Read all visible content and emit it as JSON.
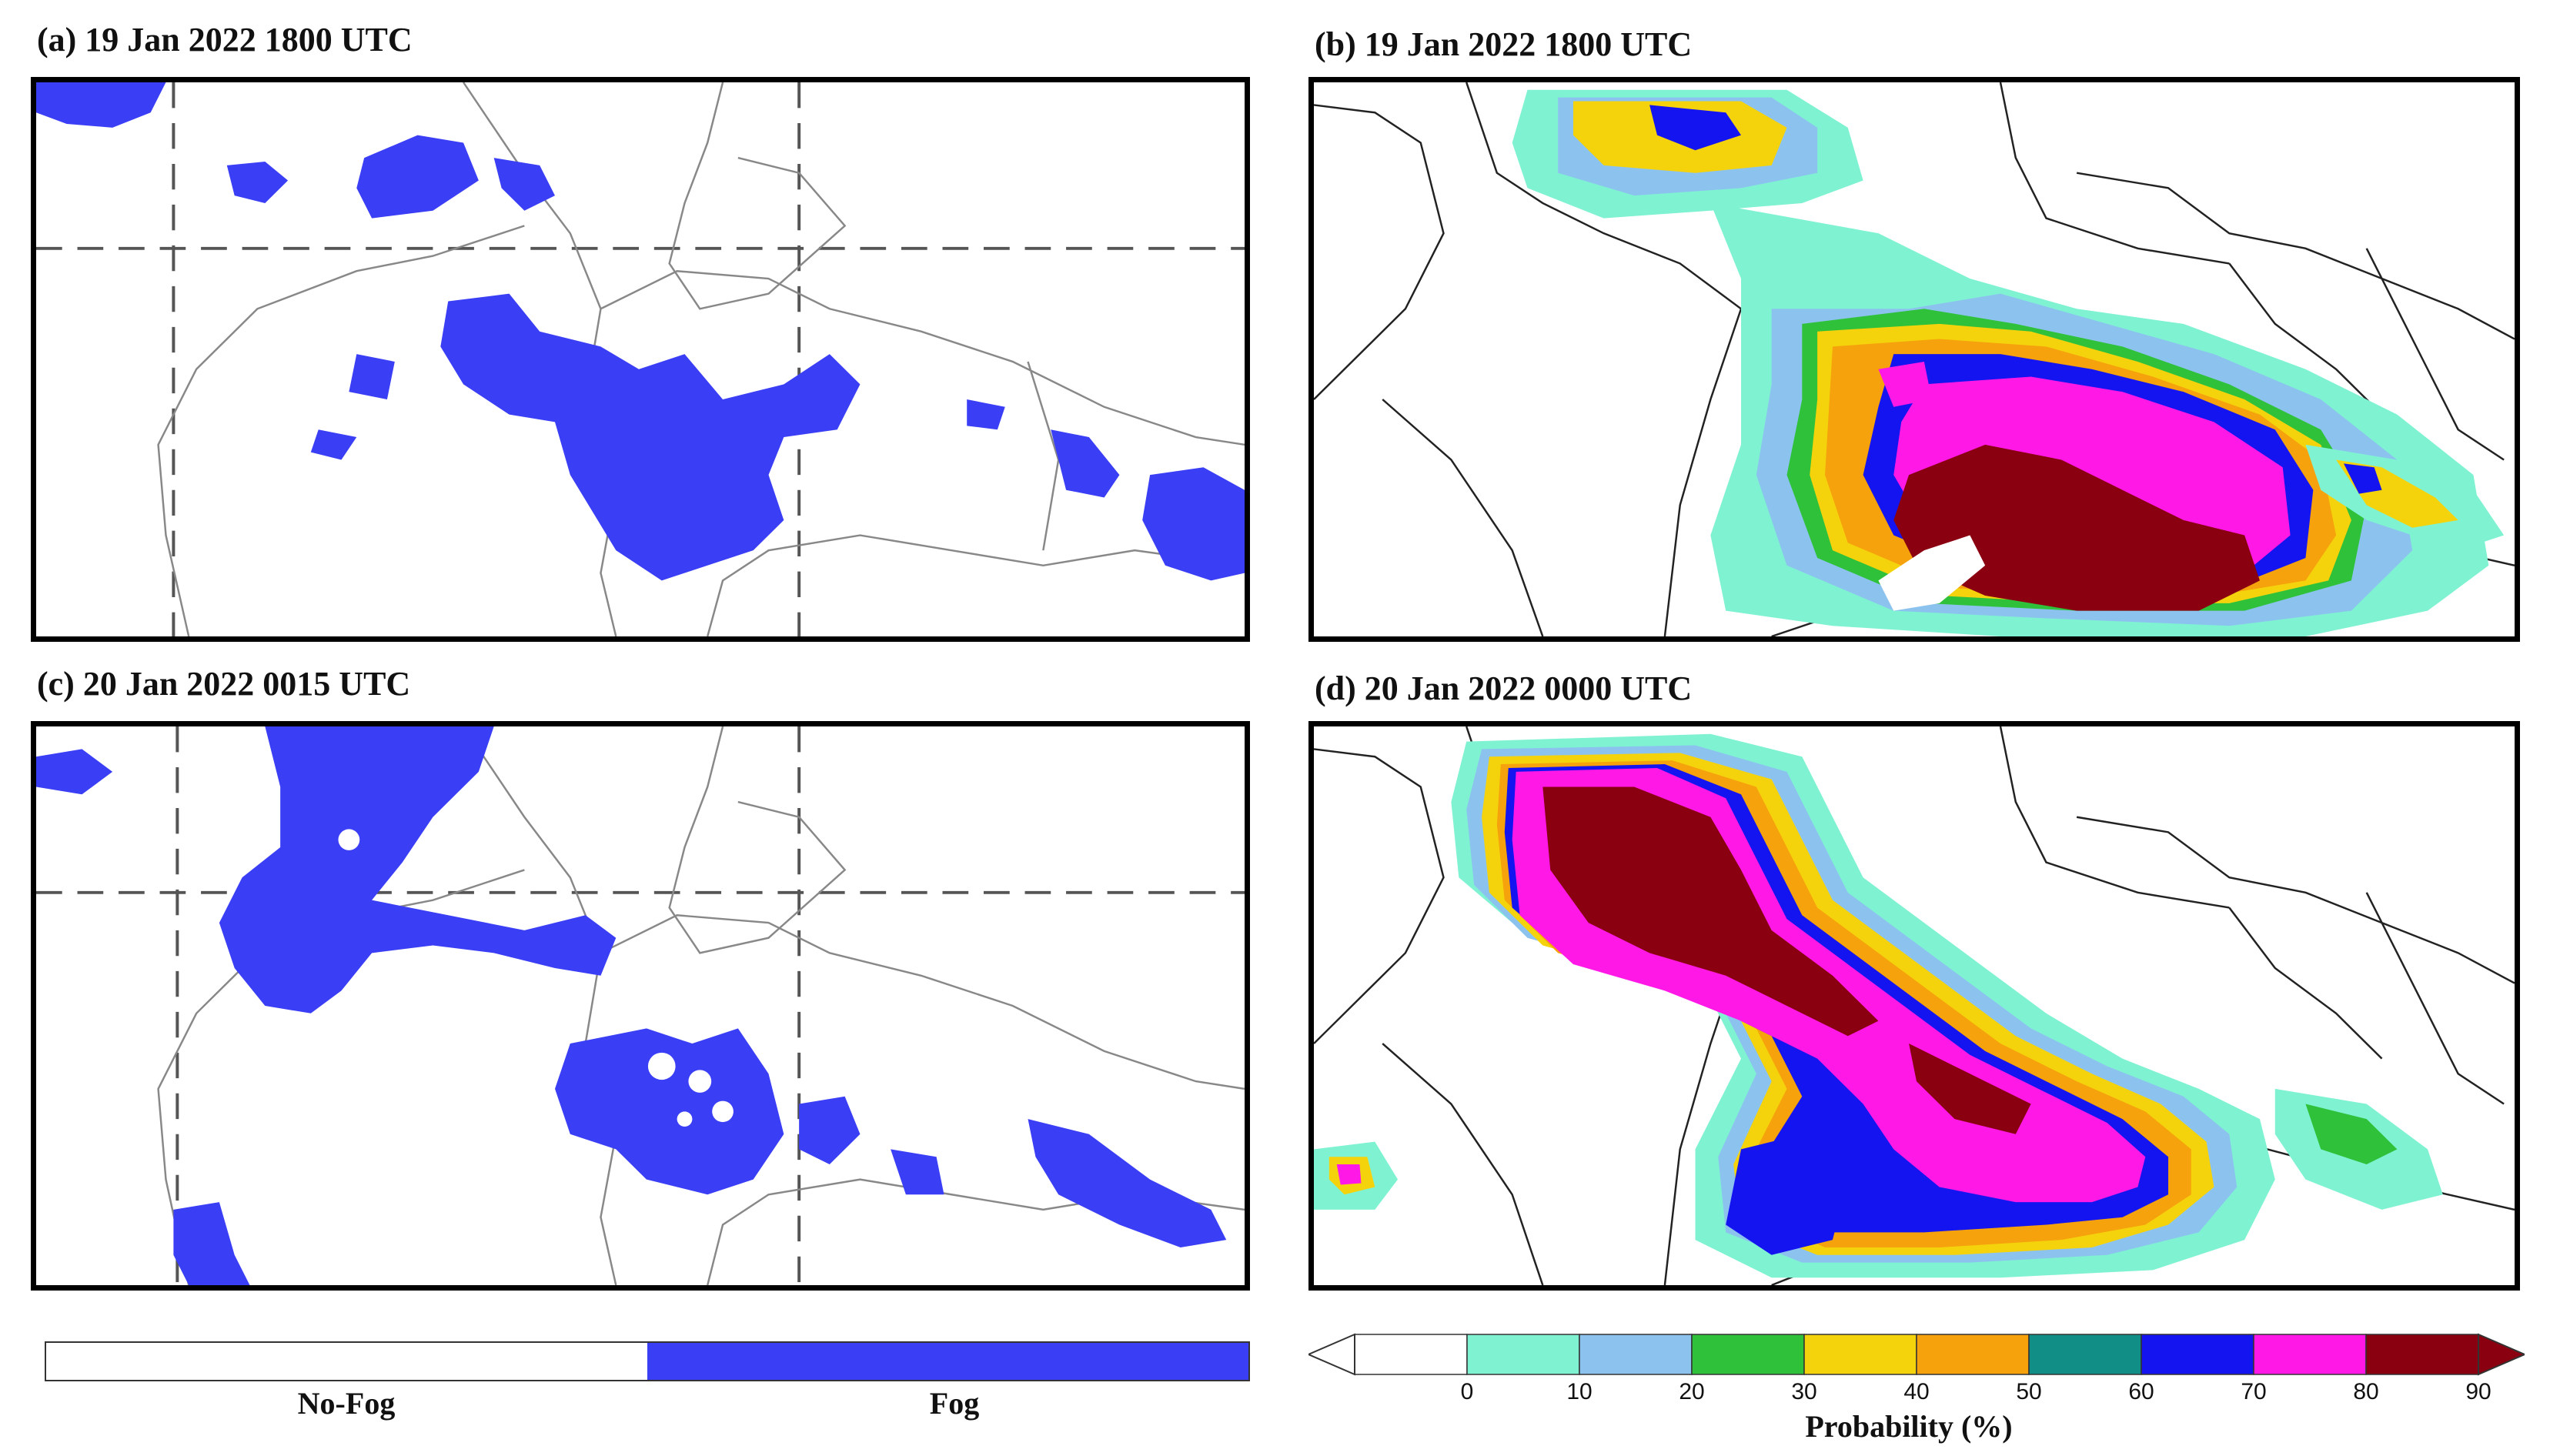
{
  "panels": {
    "a": {
      "title": "(a) 19 Jan 2022 1800 UTC"
    },
    "b": {
      "title": "(b) 19 Jan 2022 1800 UTC"
    },
    "c": {
      "title": "(c) 20 Jan 2022 0015 UTC"
    },
    "d": {
      "title": "(d) 20 Jan 2022 0000 UTC"
    }
  },
  "fog_legend": {
    "no_fog_label": "No-Fog",
    "fog_label": "Fog",
    "no_fog_color": "#ffffff",
    "fog_color": "#3a3ef5"
  },
  "probability_legend": {
    "title": "Probability (%)",
    "ticks": [
      "0",
      "10",
      "20",
      "30",
      "40",
      "50",
      "60",
      "70",
      "80",
      "90"
    ],
    "colors": [
      "#ffffff",
      "#7ff2d2",
      "#8cc3ee",
      "#2fc13a",
      "#f5d30c",
      "#f5a20c",
      "#118f86",
      "#1414f0",
      "#ff18e6",
      "#8a0010"
    ]
  }
}
